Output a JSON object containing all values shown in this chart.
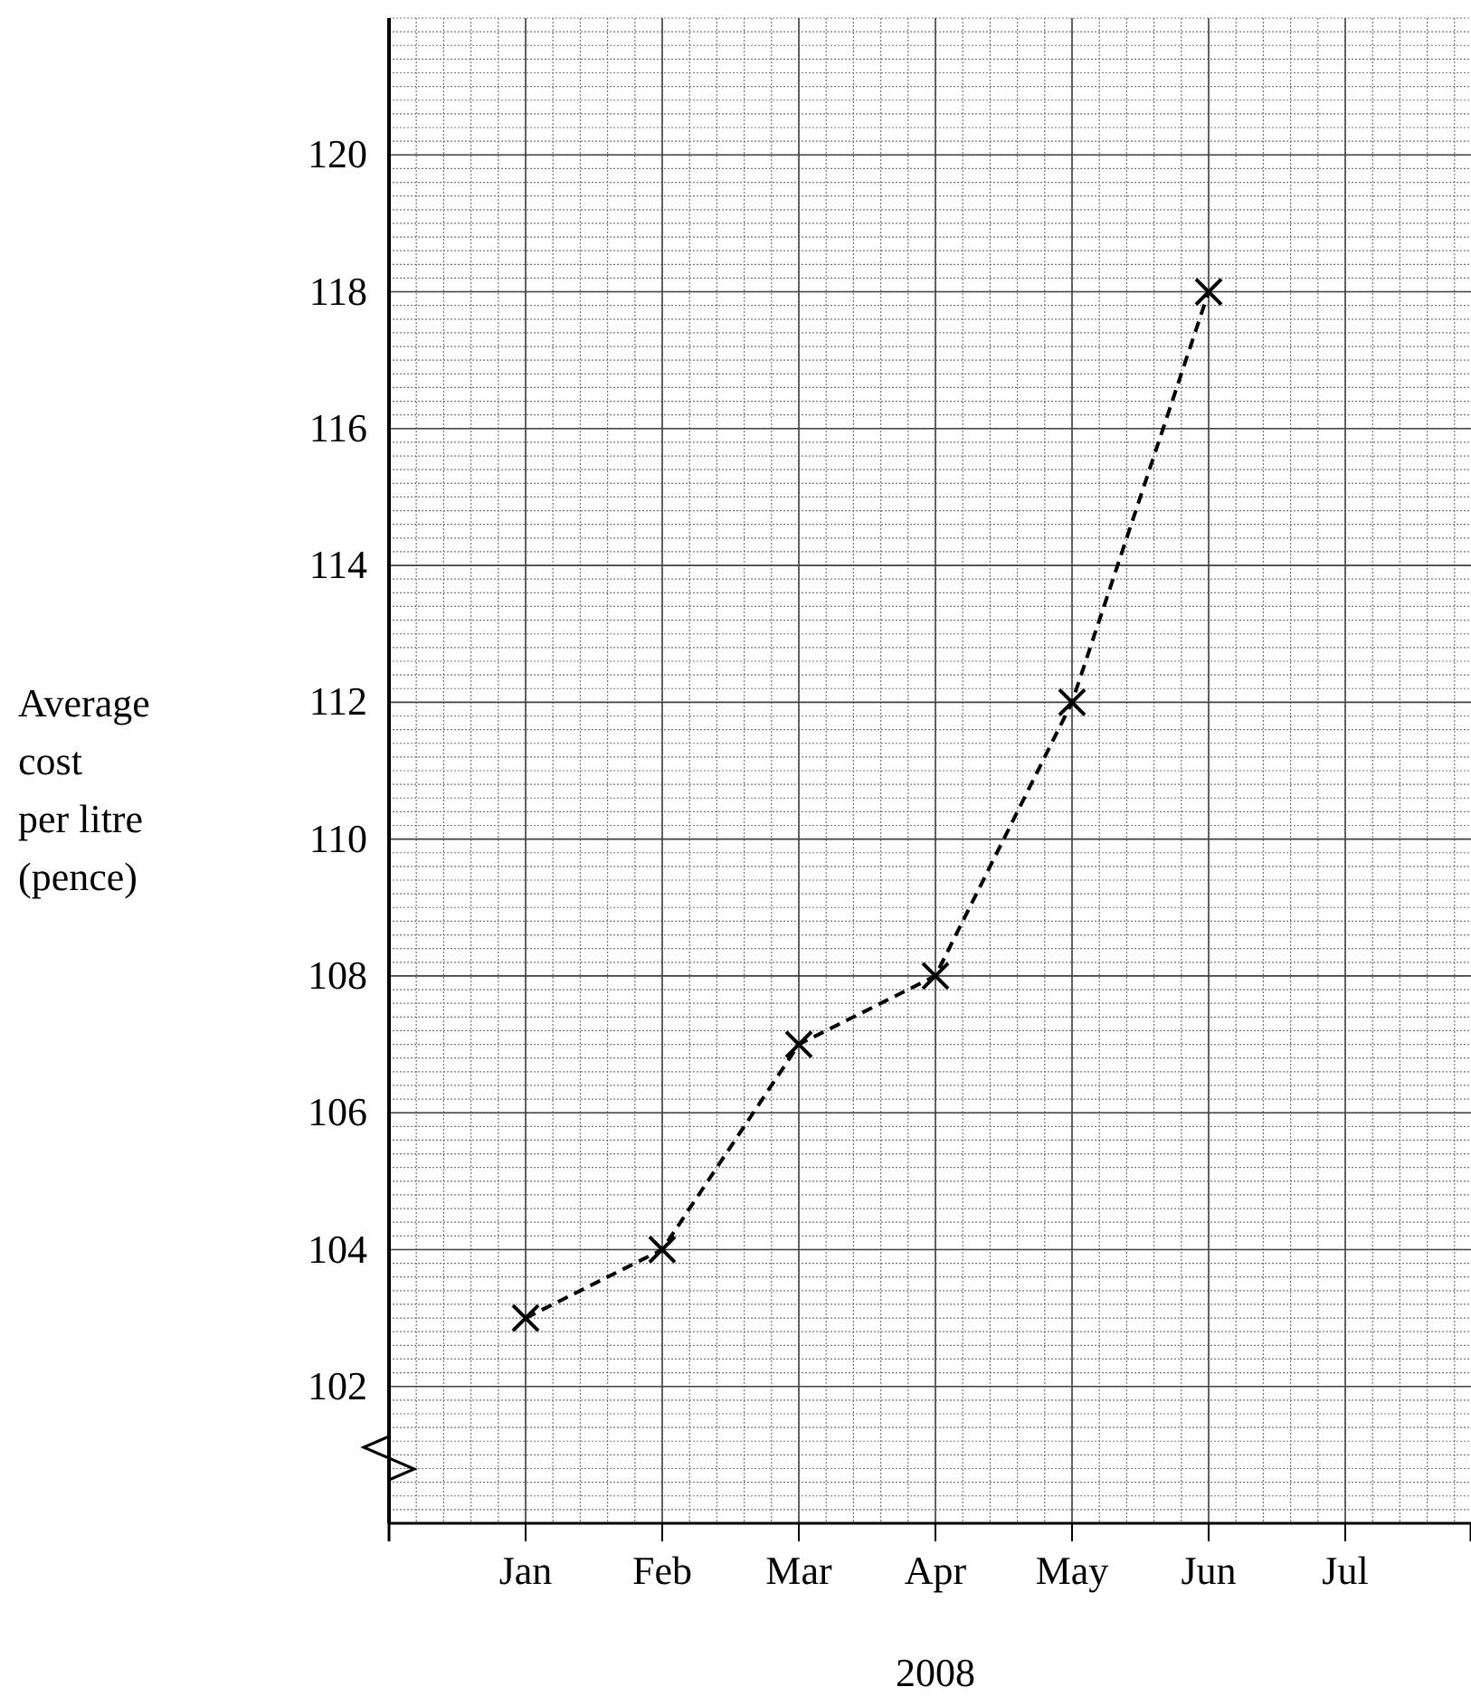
{
  "chart_data": {
    "type": "line",
    "xlabel": "2008",
    "ylabel": "Average\ncost\nper litre\n(pence)",
    "categories": [
      "Jan",
      "Feb",
      "Mar",
      "Apr",
      "May",
      "Jun",
      "Jul"
    ],
    "series": [
      {
        "color": "#000000",
        "values": [
          103,
          104,
          107,
          108,
          112,
          118,
          null
        ]
      }
    ],
    "ylim": [
      100,
      122
    ],
    "yticks": [
      {
        "value": 100,
        "label": null
      },
      102,
      104,
      106,
      108,
      110,
      112,
      114,
      116,
      118,
      120
    ],
    "grid": true,
    "marker": "cross",
    "line_style": "dashed"
  }
}
